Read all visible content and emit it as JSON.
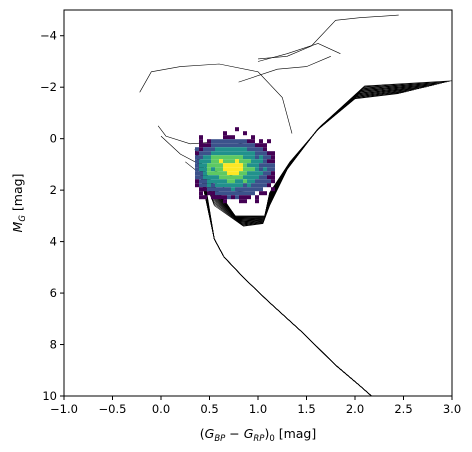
{
  "chart_data": {
    "type": "scatter",
    "xlabel_parts": {
      "open": "(",
      "g": "G",
      "bp": "BP",
      "minus": " − ",
      "rp": "RP",
      "close": ")",
      "sub0": "0",
      "unit": " [mag]"
    },
    "ylabel_parts": {
      "m": "M",
      "g": "G",
      "unit": " [mag]"
    },
    "xlim": [
      -1.0,
      3.0
    ],
    "ylim": [
      10,
      -5
    ],
    "y_inverted": true,
    "x_ticks": [
      -1.0,
      -0.5,
      0.0,
      0.5,
      1.0,
      1.5,
      2.0,
      2.5,
      3.0
    ],
    "x_tick_labels": [
      "−1.0",
      "−0.5",
      "0.0",
      "0.5",
      "1.0",
      "1.5",
      "2.0",
      "2.5",
      "3.0"
    ],
    "y_ticks": [
      -4,
      -2,
      0,
      2,
      4,
      6,
      8,
      10
    ],
    "y_tick_labels": [
      "−4",
      "−2",
      "0",
      "2",
      "4",
      "6",
      "8",
      "10"
    ],
    "grid": false,
    "layers": [
      {
        "kind": "isochrones",
        "color": "#000000",
        "count": 22,
        "main_sequence": {
          "color": [
            0.55,
            0.8,
            1.05,
            1.4,
            1.75,
            2.05,
            2.2
          ],
          "mag": [
            4.3,
            5.1,
            6.2,
            7.5,
            8.9,
            9.8,
            10.0
          ]
        },
        "turnoff": {
          "color": [
            0.4,
            0.5,
            0.6
          ],
          "mag": [
            2.0,
            3.4,
            4.2
          ]
        },
        "red_giant_branch": {
          "color": [
            1.1,
            1.4,
            1.8,
            2.2,
            2.5,
            3.0
          ],
          "mag": [
            3.5,
            1.0,
            -0.8,
            -1.7,
            -2.0,
            -2.1
          ]
        },
        "blue_loop": {
          "color": [
            -0.2,
            0.1,
            0.5,
            1.0
          ],
          "mag": [
            -1.9,
            -2.7,
            -3.0,
            -2.6
          ]
        },
        "bright_track": {
          "color": [
            0.8,
            1.3,
            1.7,
            2.0,
            2.5
          ],
          "mag": [
            -2.4,
            -3.2,
            -3.5,
            -4.6,
            -4.8
          ]
        }
      },
      {
        "kind": "density_2d",
        "colormap": [
          "#440154",
          "#3b528b",
          "#21918c",
          "#5ec962",
          "#fde725"
        ],
        "center": {
          "color": 0.7,
          "mag": 1.05
        },
        "extent": {
          "color": [
            0.35,
            1.15
          ],
          "mag": [
            -0.6,
            2.5
          ]
        },
        "peak": {
          "color": 0.7,
          "mag": 1.0
        }
      }
    ]
  }
}
